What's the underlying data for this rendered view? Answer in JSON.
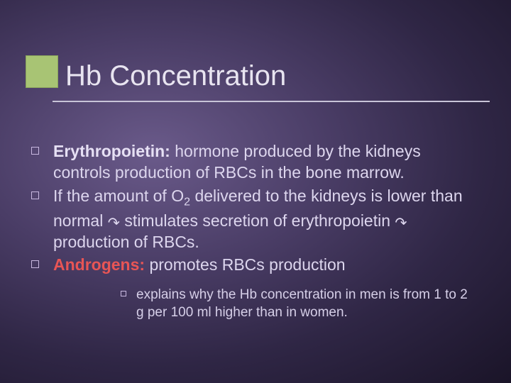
{
  "slide": {
    "title": "Hb Concentration",
    "accent_color": "#a8c474",
    "background_gradient": [
      "#6a5a8a",
      "#4a3d66",
      "#2f2645",
      "#1a1428"
    ],
    "text_color": "#ddd6ee",
    "rule_color": "#c8c4d8",
    "title_fontsize": 40,
    "body_fontsize": 23,
    "sub_fontsize": 19,
    "bullets": [
      {
        "bold_lead": "Erythropoietin:",
        "rest": " hormone produced by the kidneys controls production of RBCs in the bone marrow."
      },
      {
        "pre": "If the amount of O",
        "sub": "2",
        "mid1": " delivered to the kidneys is lower than normal ",
        "arrow1": "↷",
        "mid2": " stimulates secretion of erythropoietin ",
        "arrow2": "↷",
        "post": " production of RBCs."
      },
      {
        "red_lead": "Androgens:",
        "rest": " promotes RBCs production"
      }
    ],
    "sub_bullet": {
      "text": "explains why the Hb concentration in men is from 1 to 2 g per 100 ml higher than in women."
    }
  }
}
